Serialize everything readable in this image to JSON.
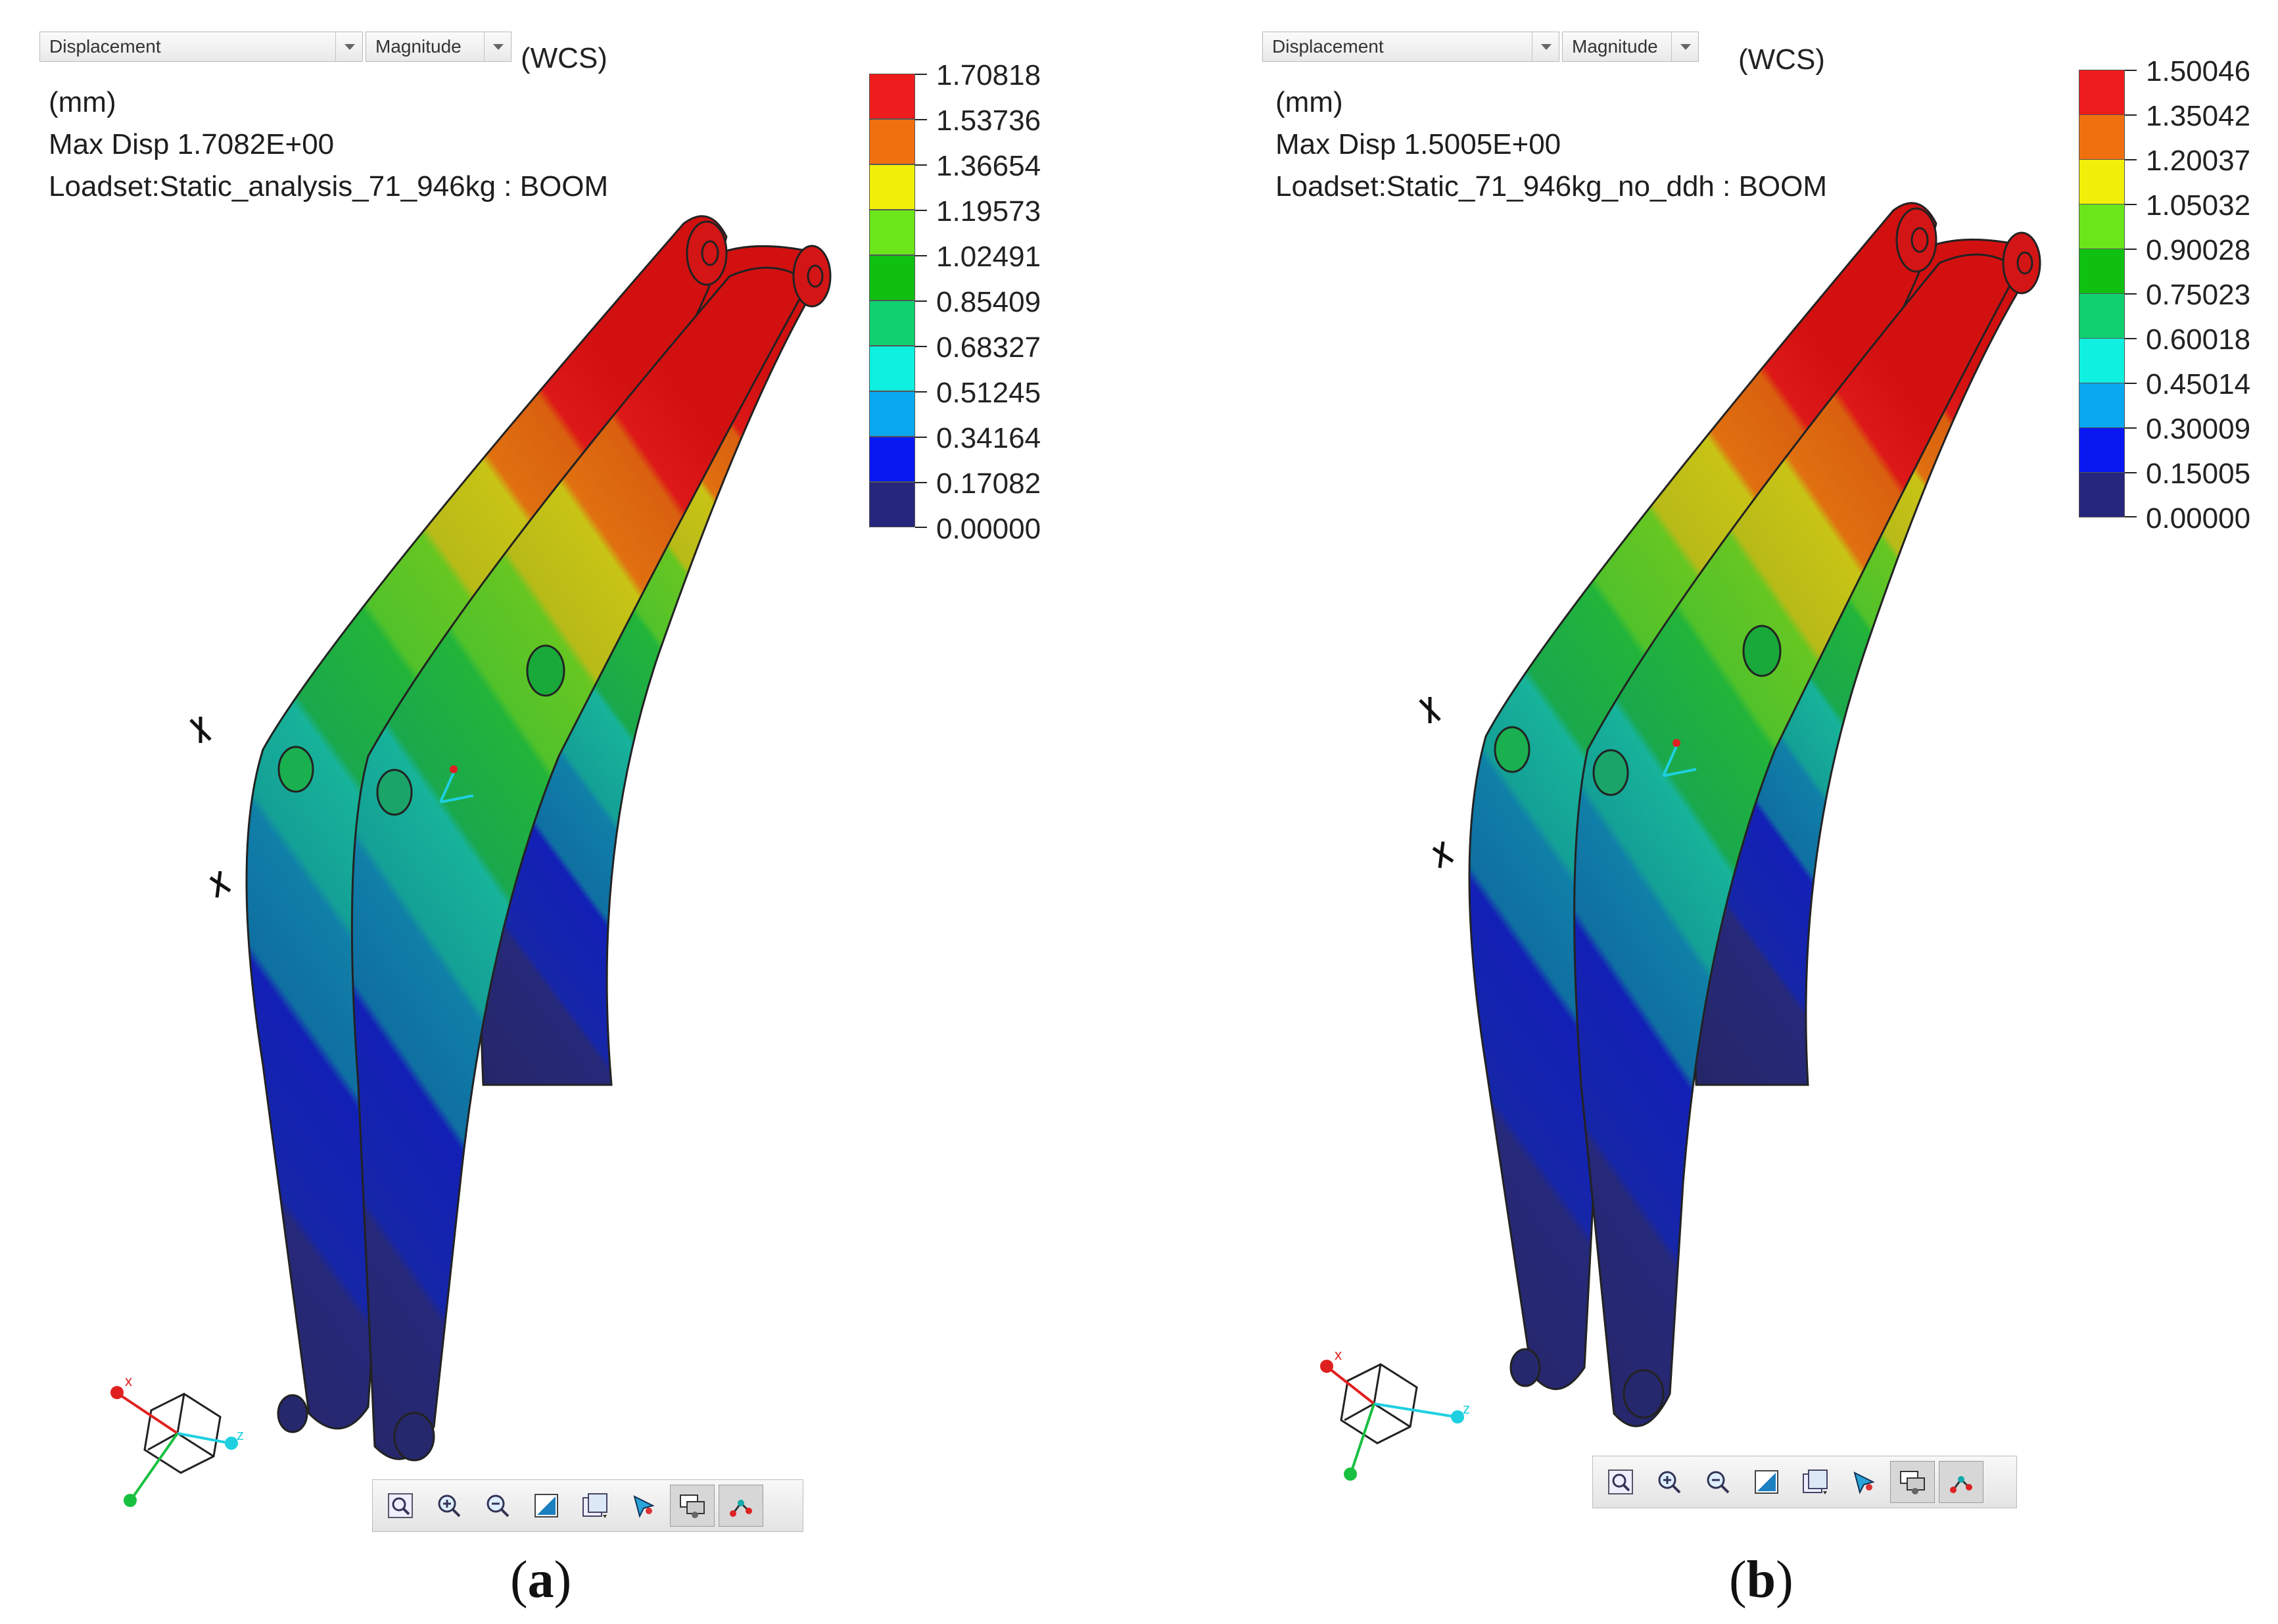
{
  "panels": [
    {
      "id": "a",
      "dropdown_result": "Displacement",
      "dropdown_component": "Magnitude",
      "coord_system": "(WCS)",
      "units": "(mm)",
      "max_disp": "Max Disp  1.7082E+00",
      "loadset": "Loadset:Static_analysis_71_946kg :  BOOM",
      "legend": [
        "1.70818",
        "1.53736",
        "1.36654",
        "1.19573",
        "1.02491",
        "0.85409",
        "0.68327",
        "0.51245",
        "0.34164",
        "0.17082",
        "0.00000"
      ],
      "caption_letter": "a",
      "caption_open": "(",
      "caption_close": ")"
    },
    {
      "id": "b",
      "dropdown_result": "Displacement",
      "dropdown_component": "Magnitude",
      "coord_system": "(WCS)",
      "units": "(mm)",
      "max_disp": "Max Disp  1.5005E+00",
      "loadset": "Loadset:Static_71_946kg_no_ddh :  BOOM",
      "legend": [
        "1.50046",
        "1.35042",
        "1.20037",
        "1.05032",
        "0.90028",
        "0.75023",
        "0.60018",
        "0.45014",
        "0.30009",
        "0.15005",
        "0.00000"
      ],
      "caption_letter": "b",
      "caption_open": "(",
      "caption_close": ")"
    }
  ],
  "legend_colors": [
    "#ee1c1c",
    "#f07010",
    "#f0f00a",
    "#6ae61a",
    "#10c010",
    "#10d070",
    "#10f0e0",
    "#0aa8f0",
    "#0818f0",
    "#26267c"
  ],
  "axis_labels": {
    "x": "x",
    "z": "z"
  },
  "toolbar_icons": [
    "refit-icon",
    "zoom-in-icon",
    "zoom-out-icon",
    "view-orient-icon",
    "saved-views-icon",
    "spin-center-icon",
    "display-style-icon",
    "datum-display-icon"
  ]
}
